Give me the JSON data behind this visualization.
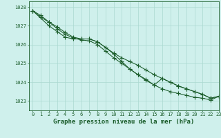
{
  "xlabel": "Graphe pression niveau de la mer (hPa)",
  "ylim": [
    1022.5,
    1028.3
  ],
  "xlim": [
    -0.5,
    23
  ],
  "yticks": [
    1023,
    1024,
    1025,
    1026,
    1027,
    1028
  ],
  "xticks": [
    0,
    1,
    2,
    3,
    4,
    5,
    6,
    7,
    8,
    9,
    10,
    11,
    12,
    13,
    14,
    15,
    16,
    17,
    18,
    19,
    20,
    21,
    22,
    23
  ],
  "bg_color": "#cff0ec",
  "grid_color": "#aad8d0",
  "line_color": "#1a5c2a",
  "line1_x": [
    0,
    1,
    2,
    3,
    4,
    5,
    6,
    7,
    8,
    9,
    10,
    11,
    12,
    13,
    14,
    15,
    16,
    17,
    18,
    19,
    20,
    21,
    22,
    23
  ],
  "line1": [
    1027.8,
    1027.45,
    1027.2,
    1026.95,
    1026.65,
    1026.4,
    1026.3,
    1026.3,
    1026.15,
    1025.85,
    1025.55,
    1025.3,
    1025.1,
    1024.9,
    1024.65,
    1024.4,
    1024.2,
    1024.0,
    1023.8,
    1023.65,
    1023.5,
    1023.35,
    1023.15,
    1023.25
  ],
  "line2_x": [
    0,
    2,
    3,
    4,
    5,
    6,
    7,
    8,
    9,
    10,
    11,
    12,
    13,
    14,
    15,
    16,
    17,
    18,
    19,
    20,
    21,
    22,
    23
  ],
  "line2": [
    1027.8,
    1027.0,
    1026.7,
    1026.4,
    1026.3,
    1026.3,
    1026.3,
    1026.15,
    1025.85,
    1025.5,
    1025.1,
    1024.7,
    1024.4,
    1024.1,
    1023.85,
    1024.2,
    1024.0,
    1023.8,
    1023.65,
    1023.5,
    1023.35,
    1023.15,
    1023.25
  ],
  "line3_x": [
    0,
    1,
    2,
    3,
    4,
    5,
    6,
    7,
    8,
    9,
    10,
    11,
    12,
    13,
    14,
    15,
    16,
    17,
    18,
    19,
    20,
    21,
    22,
    23
  ],
  "line3": [
    1027.8,
    1027.55,
    1027.2,
    1026.85,
    1026.55,
    1026.35,
    1026.25,
    1026.2,
    1026.0,
    1025.65,
    1025.3,
    1025.0,
    1024.7,
    1024.4,
    1024.15,
    1023.85,
    1023.65,
    1023.5,
    1023.4,
    1023.3,
    1023.2,
    1023.15,
    1023.05,
    1023.25
  ],
  "marker": "+",
  "markersize": 4.0,
  "linewidth": 0.75,
  "tick_fontsize": 5.0,
  "xlabel_fontsize": 6.5
}
